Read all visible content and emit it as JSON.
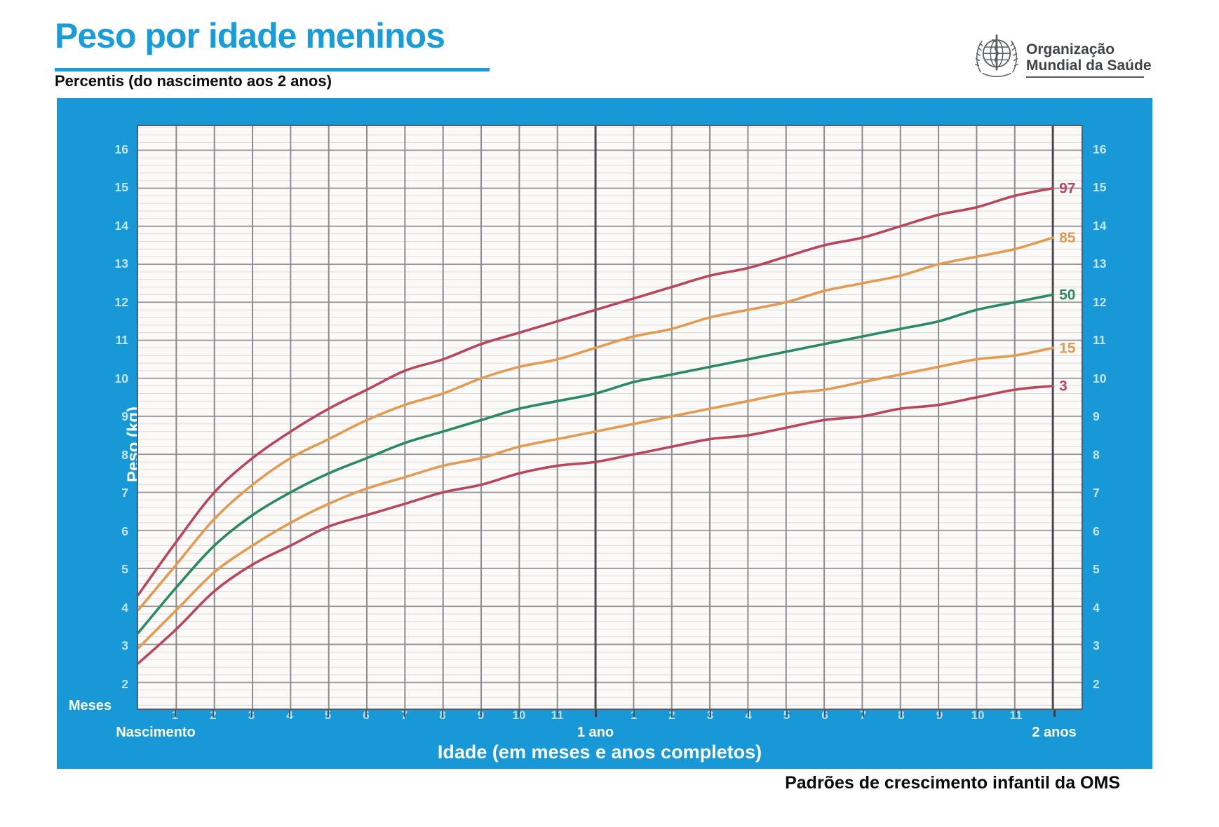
{
  "header": {
    "title": "Peso por idade meninos",
    "subtitle": "Percentis (do nascimento aos 2 anos)"
  },
  "who": {
    "line1": "Organização",
    "line2": "Mundial da Saúde"
  },
  "footer": {
    "caption": "Padrões de crescimento infantil da OMS"
  },
  "colors": {
    "title_blue": "#1A9CD8",
    "panel_blue": "#1898D6",
    "plot_background": "#FBFAF8",
    "major_grid": "#96969A",
    "minor_grid": "#DCD9DA",
    "year_line": "#4B4B4F",
    "month_line": "#8C8C90",
    "percentile_red": "#B8475C",
    "percentile_orange": "#E29B50",
    "percentile_green": "#2A8A63"
  },
  "chart_data": {
    "type": "line",
    "title": "Peso por idade meninos",
    "subtitle": "Percentis (do nascimento aos 2 anos)",
    "xlabel": "Idade (em meses e anos completos)",
    "ylabel": "Peso (kg)",
    "grid": "on",
    "legend_position": "right-end-of-curves",
    "xlim": [
      0,
      24.75
    ],
    "ylim": [
      1.35,
      16.63
    ],
    "x_axis": {
      "unit_label": "Meses",
      "birth_label": "Nascimento",
      "year1_label": "1 ano",
      "year2_label": "2 anos",
      "labeled_months": [
        1,
        2,
        3,
        4,
        5,
        6,
        7,
        8,
        9,
        10,
        11,
        13,
        14,
        15,
        16,
        17,
        18,
        19,
        20,
        21,
        22,
        23
      ],
      "month_label_texts": [
        "1",
        "2",
        "3",
        "4",
        "5",
        "6",
        "7",
        "8",
        "9",
        "10",
        "11",
        "1",
        "2",
        "3",
        "4",
        "5",
        "6",
        "7",
        "8",
        "9",
        "10",
        "11"
      ],
      "year_marker_months": [
        12,
        24
      ]
    },
    "y_axis": {
      "unit": "kg",
      "ticks": [
        2,
        3,
        4,
        5,
        6,
        7,
        8,
        9,
        10,
        11,
        12,
        13,
        14,
        15,
        16
      ],
      "minor_step": 0.2
    },
    "x_months": [
      0,
      1,
      2,
      3,
      4,
      5,
      6,
      7,
      8,
      9,
      10,
      11,
      12,
      13,
      14,
      15,
      16,
      17,
      18,
      19,
      20,
      21,
      22,
      23,
      24
    ],
    "series": [
      {
        "name": "97",
        "color": "#B8475C",
        "values": [
          4.3,
          5.7,
          7.0,
          7.9,
          8.6,
          9.2,
          9.7,
          10.2,
          10.5,
          10.9,
          11.2,
          11.5,
          11.8,
          12.1,
          12.4,
          12.7,
          12.9,
          13.2,
          13.5,
          13.7,
          14.0,
          14.3,
          14.5,
          14.8,
          15.0
        ]
      },
      {
        "name": "85",
        "color": "#E29B50",
        "values": [
          3.9,
          5.1,
          6.3,
          7.2,
          7.9,
          8.4,
          8.9,
          9.3,
          9.6,
          10.0,
          10.3,
          10.5,
          10.8,
          11.1,
          11.3,
          11.6,
          11.8,
          12.0,
          12.3,
          12.5,
          12.7,
          13.0,
          13.2,
          13.4,
          13.7
        ]
      },
      {
        "name": "50",
        "color": "#2A8A63",
        "values": [
          3.3,
          4.5,
          5.6,
          6.4,
          7.0,
          7.5,
          7.9,
          8.3,
          8.6,
          8.9,
          9.2,
          9.4,
          9.6,
          9.9,
          10.1,
          10.3,
          10.5,
          10.7,
          10.9,
          11.1,
          11.3,
          11.5,
          11.8,
          12.0,
          12.2
        ]
      },
      {
        "name": "15",
        "color": "#E29B50",
        "values": [
          2.9,
          3.9,
          4.9,
          5.6,
          6.2,
          6.7,
          7.1,
          7.4,
          7.7,
          7.9,
          8.2,
          8.4,
          8.6,
          8.8,
          9.0,
          9.2,
          9.4,
          9.6,
          9.7,
          9.9,
          10.1,
          10.3,
          10.5,
          10.6,
          10.8
        ]
      },
      {
        "name": "3",
        "color": "#B8475C",
        "values": [
          2.5,
          3.4,
          4.4,
          5.1,
          5.6,
          6.1,
          6.4,
          6.7,
          7.0,
          7.2,
          7.5,
          7.7,
          7.8,
          8.0,
          8.2,
          8.4,
          8.5,
          8.7,
          8.9,
          9.0,
          9.2,
          9.3,
          9.5,
          9.7,
          9.8
        ]
      }
    ]
  }
}
